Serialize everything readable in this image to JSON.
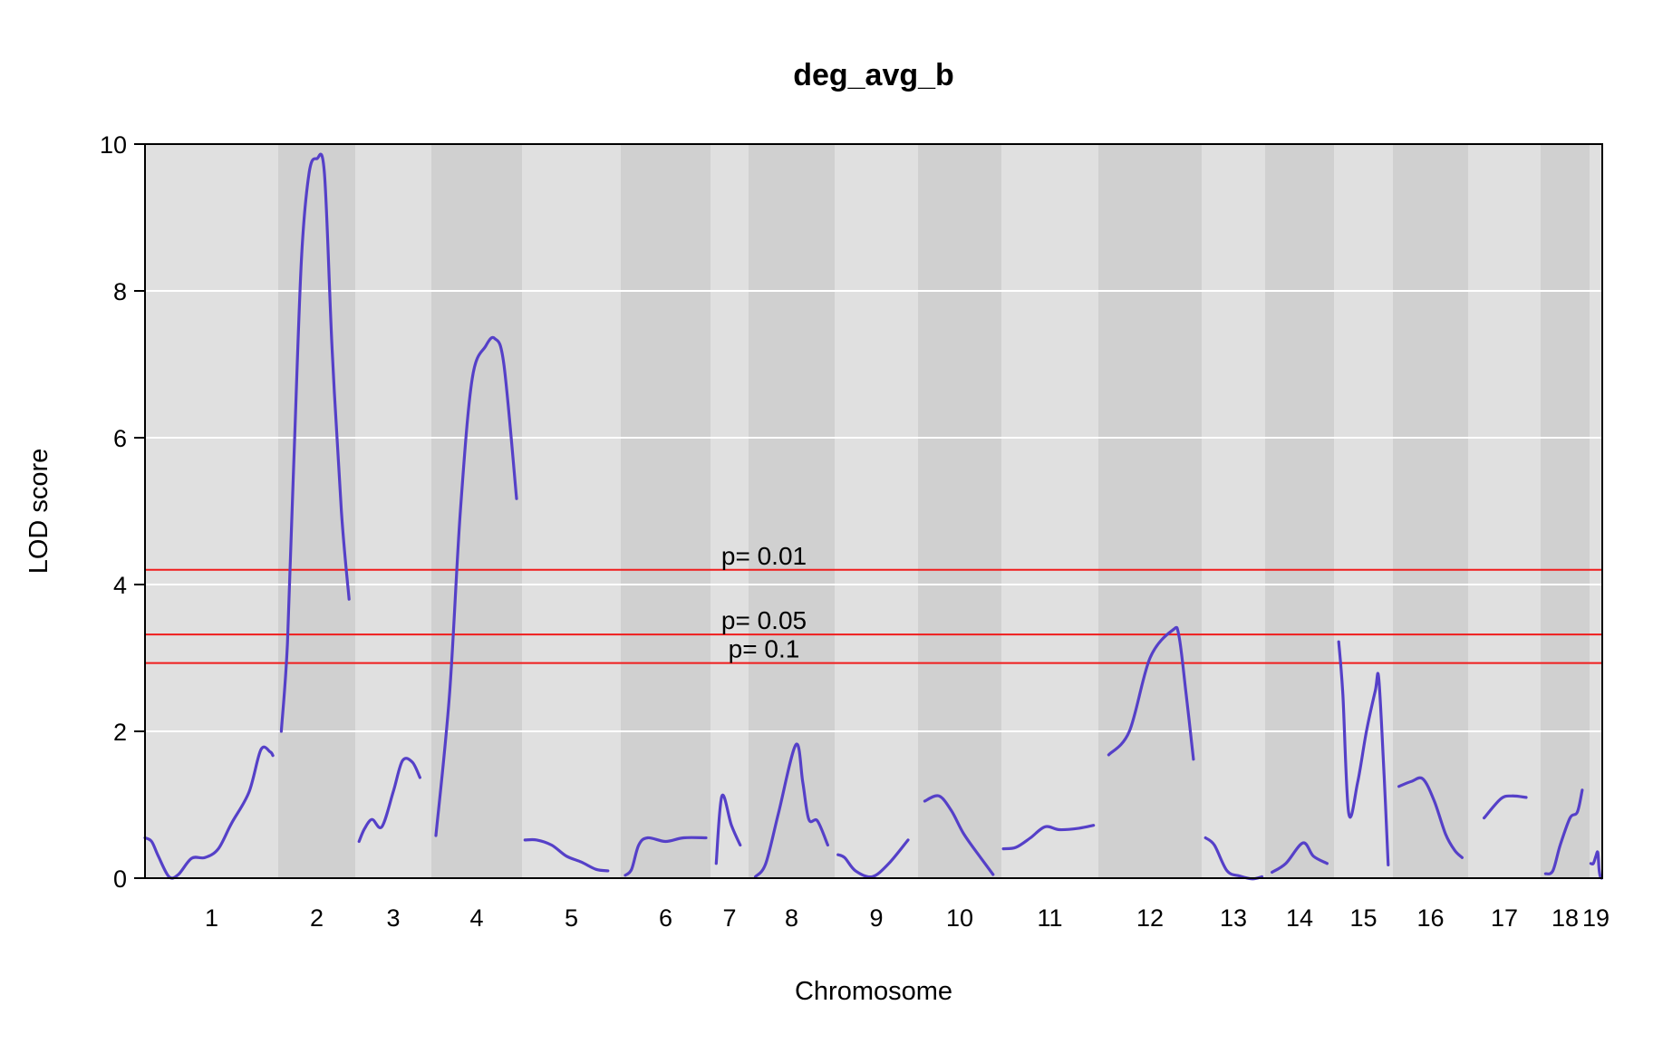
{
  "chart_data": {
    "type": "line",
    "title": "deg_avg_b",
    "xlabel": "Chromosome",
    "ylabel": "LOD score",
    "ylim": [
      0,
      10
    ],
    "yticks": [
      0,
      2,
      4,
      6,
      8,
      10
    ],
    "grid": true,
    "chromosomes": [
      "1",
      "2",
      "3",
      "4",
      "5",
      "6",
      "7",
      "8",
      "9",
      "10",
      "11",
      "12",
      "13",
      "14",
      "15",
      "16",
      "17",
      "18",
      "19"
    ],
    "series": [
      {
        "segments": [
          {
            "chromosome": "1",
            "points": [
              [
                0,
                0.55
              ],
              [
                0.05,
                0.5
              ],
              [
                0.1,
                0.3
              ],
              [
                0.18,
                0.02
              ],
              [
                0.25,
                0.05
              ],
              [
                0.35,
                0.27
              ],
              [
                0.45,
                0.28
              ],
              [
                0.55,
                0.4
              ],
              [
                0.65,
                0.75
              ],
              [
                0.78,
                1.17
              ],
              [
                0.87,
                1.75
              ],
              [
                0.94,
                1.72
              ],
              [
                0.96,
                1.67
              ]
            ]
          },
          {
            "chromosome": "2",
            "points": [
              [
                0.04,
                2.0
              ],
              [
                0.12,
                3.2
              ],
              [
                0.2,
                5.6
              ],
              [
                0.3,
                8.4
              ],
              [
                0.4,
                9.6
              ],
              [
                0.5,
                9.8
              ],
              [
                0.6,
                9.6
              ],
              [
                0.7,
                7.2
              ],
              [
                0.82,
                5.0
              ],
              [
                0.92,
                3.8
              ]
            ]
          },
          {
            "chromosome": "3",
            "points": [
              [
                0.05,
                0.5
              ],
              [
                0.12,
                0.67
              ],
              [
                0.22,
                0.8
              ],
              [
                0.35,
                0.7
              ],
              [
                0.5,
                1.18
              ],
              [
                0.62,
                1.6
              ],
              [
                0.75,
                1.58
              ],
              [
                0.85,
                1.37
              ]
            ]
          },
          {
            "chromosome": "4",
            "points": [
              [
                0.05,
                0.58
              ],
              [
                0.2,
                2.5
              ],
              [
                0.32,
                5.0
              ],
              [
                0.45,
                6.8
              ],
              [
                0.6,
                7.25
              ],
              [
                0.7,
                7.35
              ],
              [
                0.8,
                7.0
              ],
              [
                0.94,
                5.17
              ]
            ]
          },
          {
            "chromosome": "5",
            "points": [
              [
                0.03,
                0.52
              ],
              [
                0.15,
                0.52
              ],
              [
                0.3,
                0.45
              ],
              [
                0.45,
                0.3
              ],
              [
                0.6,
                0.22
              ],
              [
                0.75,
                0.12
              ],
              [
                0.87,
                0.1
              ]
            ]
          },
          {
            "chromosome": "6",
            "points": [
              [
                0.05,
                0.04
              ],
              [
                0.12,
                0.12
              ],
              [
                0.2,
                0.45
              ],
              [
                0.3,
                0.55
              ],
              [
                0.5,
                0.5
              ],
              [
                0.7,
                0.55
              ],
              [
                0.95,
                0.55
              ]
            ]
          },
          {
            "chromosome": "7",
            "points": [
              [
                0.15,
                0.2
              ],
              [
                0.3,
                1.12
              ],
              [
                0.55,
                0.72
              ],
              [
                0.78,
                0.45
              ]
            ]
          },
          {
            "chromosome": "8",
            "points": [
              [
                0.08,
                0.02
              ],
              [
                0.2,
                0.2
              ],
              [
                0.35,
                0.9
              ],
              [
                0.55,
                1.82
              ],
              [
                0.63,
                1.3
              ],
              [
                0.7,
                0.8
              ],
              [
                0.8,
                0.78
              ],
              [
                0.92,
                0.45
              ]
            ]
          },
          {
            "chromosome": "9",
            "points": [
              [
                0.04,
                0.32
              ],
              [
                0.12,
                0.28
              ],
              [
                0.25,
                0.1
              ],
              [
                0.45,
                0.02
              ],
              [
                0.65,
                0.2
              ],
              [
                0.88,
                0.52
              ]
            ]
          },
          {
            "chromosome": "10",
            "points": [
              [
                0.08,
                1.05
              ],
              [
                0.25,
                1.12
              ],
              [
                0.4,
                0.92
              ],
              [
                0.55,
                0.6
              ],
              [
                0.75,
                0.28
              ],
              [
                0.9,
                0.05
              ]
            ]
          },
          {
            "chromosome": "11",
            "points": [
              [
                0.02,
                0.4
              ],
              [
                0.15,
                0.42
              ],
              [
                0.3,
                0.55
              ],
              [
                0.45,
                0.7
              ],
              [
                0.6,
                0.66
              ],
              [
                0.8,
                0.68
              ],
              [
                0.95,
                0.72
              ]
            ]
          },
          {
            "chromosome": "12",
            "points": [
              [
                0.1,
                1.68
              ],
              [
                0.3,
                2.0
              ],
              [
                0.5,
                3.0
              ],
              [
                0.72,
                3.38
              ],
              [
                0.78,
                3.3
              ],
              [
                0.85,
                2.5
              ],
              [
                0.92,
                1.62
              ]
            ]
          },
          {
            "chromosome": "13",
            "points": [
              [
                0.06,
                0.55
              ],
              [
                0.2,
                0.45
              ],
              [
                0.4,
                0.1
              ],
              [
                0.6,
                0.03
              ],
              [
                0.8,
                -0.01
              ],
              [
                0.95,
                0.02
              ]
            ]
          },
          {
            "chromosome": "14",
            "points": [
              [
                0.1,
                0.08
              ],
              [
                0.3,
                0.2
              ],
              [
                0.55,
                0.48
              ],
              [
                0.7,
                0.3
              ],
              [
                0.9,
                0.2
              ]
            ]
          },
          {
            "chromosome": "15",
            "points": [
              [
                0.08,
                3.22
              ],
              [
                0.15,
                2.5
              ],
              [
                0.25,
                0.88
              ],
              [
                0.4,
                1.3
              ],
              [
                0.55,
                2.0
              ],
              [
                0.7,
                2.55
              ],
              [
                0.76,
                2.72
              ],
              [
                0.85,
                1.4
              ],
              [
                0.92,
                0.18
              ]
            ]
          },
          {
            "chromosome": "16",
            "points": [
              [
                0.08,
                1.25
              ],
              [
                0.25,
                1.32
              ],
              [
                0.4,
                1.35
              ],
              [
                0.55,
                1.05
              ],
              [
                0.7,
                0.6
              ],
              [
                0.82,
                0.38
              ],
              [
                0.92,
                0.28
              ]
            ]
          },
          {
            "chromosome": "17",
            "points": [
              [
                0.22,
                0.82
              ],
              [
                0.45,
                1.08
              ],
              [
                0.6,
                1.12
              ],
              [
                0.8,
                1.1
              ]
            ]
          },
          {
            "chromosome": "18",
            "points": [
              [
                0.1,
                0.06
              ],
              [
                0.25,
                0.1
              ],
              [
                0.4,
                0.45
              ],
              [
                0.6,
                0.82
              ],
              [
                0.75,
                0.9
              ],
              [
                0.85,
                1.2
              ]
            ]
          },
          {
            "chromosome": "19",
            "points": [
              [
                0.1,
                0.2
              ],
              [
                0.3,
                0.2
              ],
              [
                0.5,
                0.3
              ],
              [
                0.65,
                0.35
              ],
              [
                0.75,
                0.12
              ],
              [
                0.85,
                0.02
              ],
              [
                0.95,
                0.0
              ]
            ]
          }
        ]
      }
    ],
    "thresholds": [
      {
        "label": "p= 0.01",
        "value": 4.2
      },
      {
        "label": "p= 0.05",
        "value": 3.32
      },
      {
        "label": "p= 0.1",
        "value": 2.93
      }
    ]
  }
}
